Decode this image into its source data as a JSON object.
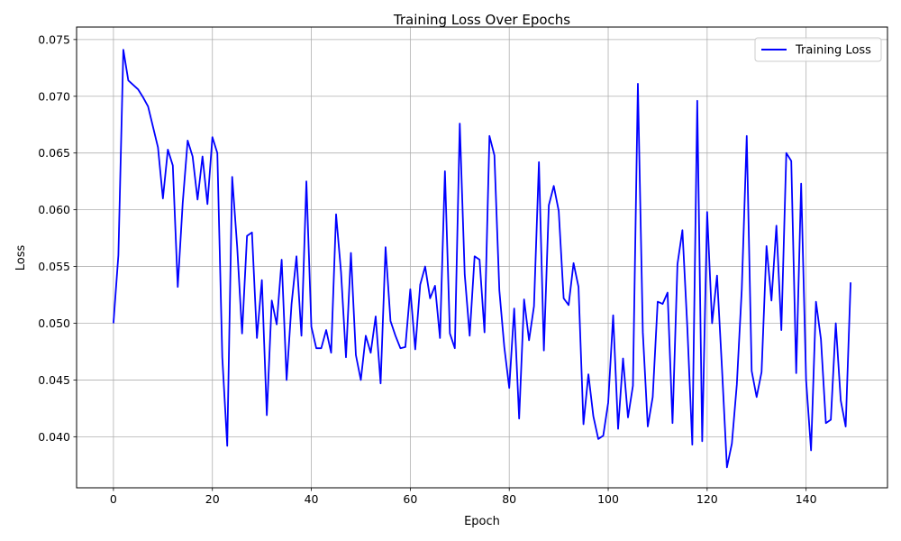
{
  "chart_data": {
    "type": "line",
    "title": "Training Loss Over Epochs",
    "xlabel": "Epoch",
    "ylabel": "Loss",
    "xlim": [
      -7.45,
      156.45
    ],
    "ylim": [
      0.0355,
      0.0761
    ],
    "xticks": [
      0,
      20,
      40,
      60,
      80,
      100,
      120,
      140
    ],
    "yticks": [
      0.04,
      0.045,
      0.05,
      0.055,
      0.06,
      0.065,
      0.07,
      0.075
    ],
    "ytick_labels": [
      "0.040",
      "0.045",
      "0.050",
      "0.055",
      "0.060",
      "0.065",
      "0.070",
      "0.075"
    ],
    "grid": true,
    "legend_position": "top-right",
    "series": [
      {
        "name": "Training Loss",
        "color": "#0000ff",
        "x_start": 0,
        "values": [
          0.05,
          0.056,
          0.0741,
          0.0714,
          0.071,
          0.0706,
          0.0699,
          0.0691,
          0.0673,
          0.0655,
          0.061,
          0.0653,
          0.0639,
          0.0532,
          0.0606,
          0.0661,
          0.0647,
          0.0609,
          0.0647,
          0.0605,
          0.0664,
          0.065,
          0.047,
          0.0392,
          0.0629,
          0.0568,
          0.0491,
          0.0577,
          0.058,
          0.0487,
          0.0538,
          0.0419,
          0.052,
          0.0499,
          0.0556,
          0.045,
          0.0517,
          0.0559,
          0.0489,
          0.0625,
          0.0497,
          0.0478,
          0.0478,
          0.0494,
          0.0474,
          0.0596,
          0.0545,
          0.047,
          0.0562,
          0.0472,
          0.045,
          0.0489,
          0.0474,
          0.0506,
          0.0447,
          0.0567,
          0.0502,
          0.0489,
          0.0478,
          0.0479,
          0.053,
          0.0477,
          0.0534,
          0.055,
          0.0522,
          0.0533,
          0.0487,
          0.0634,
          0.0491,
          0.0478,
          0.0676,
          0.0543,
          0.0489,
          0.0559,
          0.0556,
          0.0492,
          0.0665,
          0.0648,
          0.0529,
          0.0479,
          0.0443,
          0.0513,
          0.0416,
          0.0521,
          0.0485,
          0.0515,
          0.0642,
          0.0476,
          0.0604,
          0.0621,
          0.0599,
          0.0522,
          0.0516,
          0.0553,
          0.0532,
          0.0411,
          0.0455,
          0.0418,
          0.0398,
          0.0401,
          0.043,
          0.0507,
          0.0407,
          0.0469,
          0.0417,
          0.0445,
          0.0711,
          0.0492,
          0.0409,
          0.0435,
          0.0519,
          0.0517,
          0.0527,
          0.0412,
          0.0552,
          0.0582,
          0.0496,
          0.0393,
          0.0696,
          0.0396,
          0.0598,
          0.05,
          0.0542,
          0.046,
          0.0373,
          0.0394,
          0.0446,
          0.053,
          0.0665,
          0.0458,
          0.0435,
          0.0457,
          0.0568,
          0.052,
          0.0586,
          0.0494,
          0.065,
          0.0643,
          0.0456,
          0.0623,
          0.045,
          0.0388,
          0.0519,
          0.0486,
          0.0412,
          0.0415,
          0.05,
          0.0432,
          0.0409,
          0.0536
        ]
      }
    ]
  }
}
